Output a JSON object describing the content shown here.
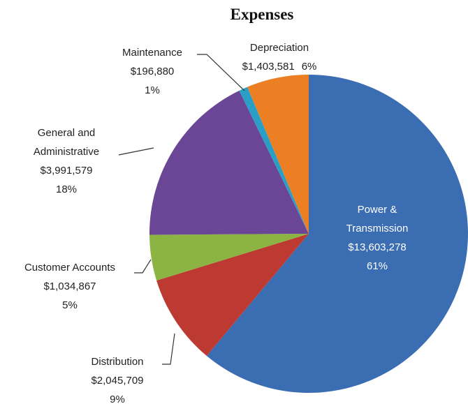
{
  "chart_data": {
    "type": "pie",
    "title": "Expenses",
    "categories": [
      "Power & Transmission",
      "Distribution",
      "Customer Accounts",
      "General and Administrative",
      "Maintenance",
      "Depreciation"
    ],
    "values": [
      13603278,
      2045709,
      1034867,
      3991579,
      196880,
      1403581
    ],
    "value_labels": [
      "$13,603,278",
      "$2,045,709",
      "$1,034,867",
      "$3,991,579",
      "$196,880",
      "$1,403,581"
    ],
    "percentages": [
      61,
      9,
      5,
      18,
      1,
      6
    ],
    "percentage_labels": [
      "61%",
      "9%",
      "5%",
      "18%",
      "1%",
      "6%"
    ],
    "colors": [
      "#3b6db3",
      "#bd3a32",
      "#8bb443",
      "#6b4596",
      "#2a9fc6",
      "#ec7e23"
    ]
  }
}
